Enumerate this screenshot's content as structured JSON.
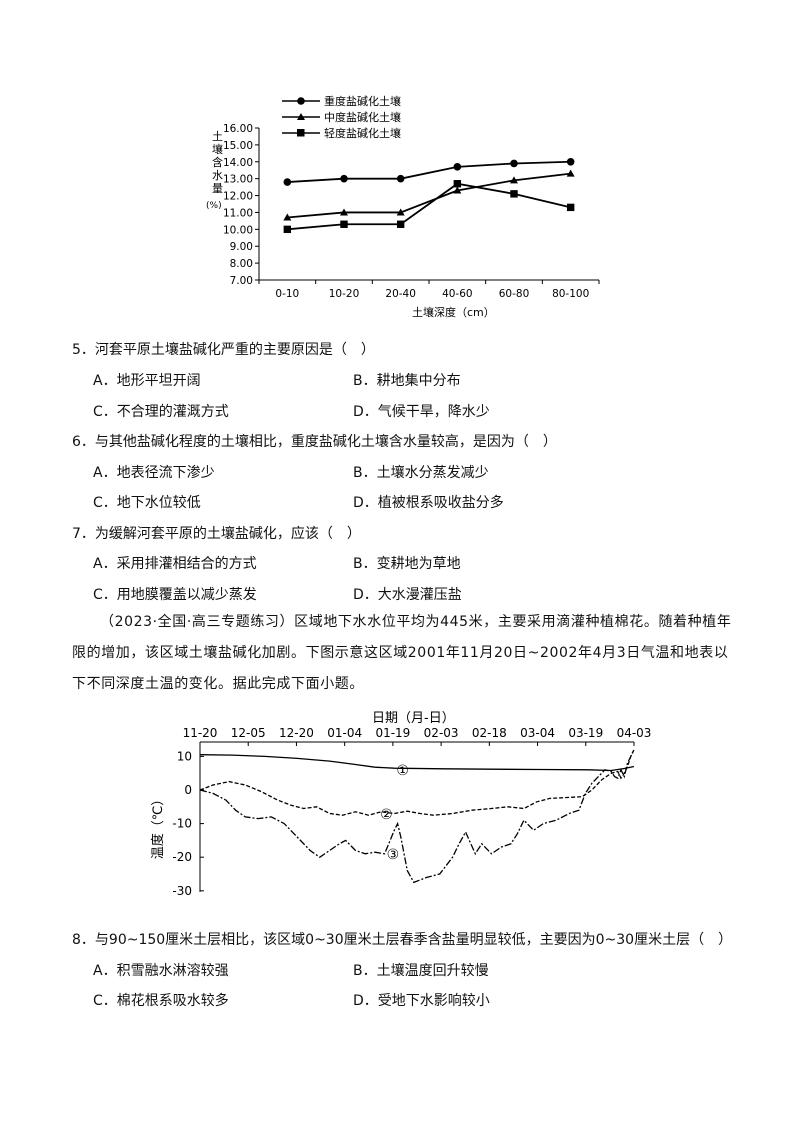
{
  "chart1": {
    "legend": [
      "重度盐碱化土壤",
      "中度盐碱化土壤",
      "轻度盐碱化土壤"
    ],
    "ylabel": "土壤含水量",
    "yunit": "(%)",
    "xlabel": "土壤深度（cm）",
    "yticks": [
      "16.00",
      "15.00",
      "14.00",
      "13.00",
      "12.00",
      "11.00",
      "10.00",
      "9.00",
      "8.00",
      "7.00"
    ]
  },
  "chart2": {
    "xlabel": "日期（月-日）",
    "ylabel": "温度（℃）",
    "xticks": [
      "11-20",
      "12-05",
      "12-20",
      "01-04",
      "01-19",
      "02-03",
      "02-18",
      "03-04",
      "03-19",
      "04-03"
    ],
    "yticks": [
      "10",
      "0",
      "-10",
      "-20",
      "-30"
    ],
    "curve_labels": [
      "①",
      "②",
      "③"
    ]
  },
  "chart_data": [
    {
      "type": "line",
      "categories": [
        "0-10",
        "10-20",
        "20-40",
        "40-60",
        "60-80",
        "80-100"
      ],
      "series": [
        {
          "name": "重度盐碱化土壤",
          "values": [
            12.8,
            13.0,
            13.0,
            13.7,
            13.9,
            14.0
          ]
        },
        {
          "name": "中度盐碱化土壤",
          "values": [
            10.7,
            11.0,
            11.0,
            12.3,
            12.9,
            13.3
          ]
        },
        {
          "name": "轻度盐碱化土壤",
          "values": [
            10.0,
            10.3,
            10.3,
            12.7,
            12.1,
            11.3
          ]
        }
      ],
      "xlabel": "土壤深度（cm）",
      "ylabel": "土壤含水量(%)",
      "ylim": [
        7,
        16
      ],
      "legend_position": "top"
    },
    {
      "type": "line",
      "x": [
        "11-20",
        "12-05",
        "12-20",
        "01-04",
        "01-19",
        "02-03",
        "02-18",
        "03-04",
        "03-19",
        "04-03"
      ],
      "series": [
        {
          "name": "①",
          "values": [
            10.5,
            10,
            9,
            7,
            6,
            6,
            6,
            6,
            6,
            7
          ]
        },
        {
          "name": "②",
          "values": [
            0,
            2,
            -5,
            -7,
            -7,
            -7,
            -5,
            -3,
            -2,
            10
          ]
        },
        {
          "name": "③",
          "values": [
            0,
            -5,
            -10,
            -20,
            -18,
            -27,
            -17,
            -9,
            -5,
            12
          ]
        }
      ],
      "xlabel": "日期（月-日）",
      "ylabel": "温度（℃）",
      "ylim": [
        -30,
        12
      ]
    }
  ],
  "questions": [
    {
      "stem": "5．河套平原土壤盐碱化严重的主要原因是（　）",
      "options": [
        "A．地形平坦开阔",
        "B．耕地集中分布",
        "C．不合理的灌溉方式",
        "D．气候干旱，降水少"
      ]
    },
    {
      "stem": "6．与其他盐碱化程度的土壤相比，重度盐碱化土壤含水量较高，是因为（　）",
      "options": [
        "A．地表径流下渗少",
        "B．土壤水分蒸发减少",
        "C．地下水位较低",
        "D．植被根系吸收盐分多"
      ]
    },
    {
      "stem": "7．为缓解河套平原的土壤盐碱化，应该（　）",
      "options": [
        "A．采用排灌相结合的方式",
        "B．变耕地为草地",
        "C．用地膜覆盖以减少蒸发",
        "D．大水漫灌压盐"
      ]
    },
    {
      "stem": "8．与90~150厘米土层相比，该区域0~30厘米土层春季含盐量明显较低，主要因为0~30厘米土层（　）",
      "options": [
        "A．积雪融水淋溶较强",
        "B．土壤温度回升较慢",
        "C．棉花根系吸水较多",
        "D．受地下水影响较小"
      ]
    }
  ],
  "passage": "（2023·全国·高三专题练习）区域地下水水位平均为445米，主要采用滴灌种植棉花。随着种植年限的增加，该区域土壤盐碱化加剧。下图示意这区域2001年11月20日~2002年4月3日气温和地表以下不同深度土温的变化。据此完成下面小题。"
}
